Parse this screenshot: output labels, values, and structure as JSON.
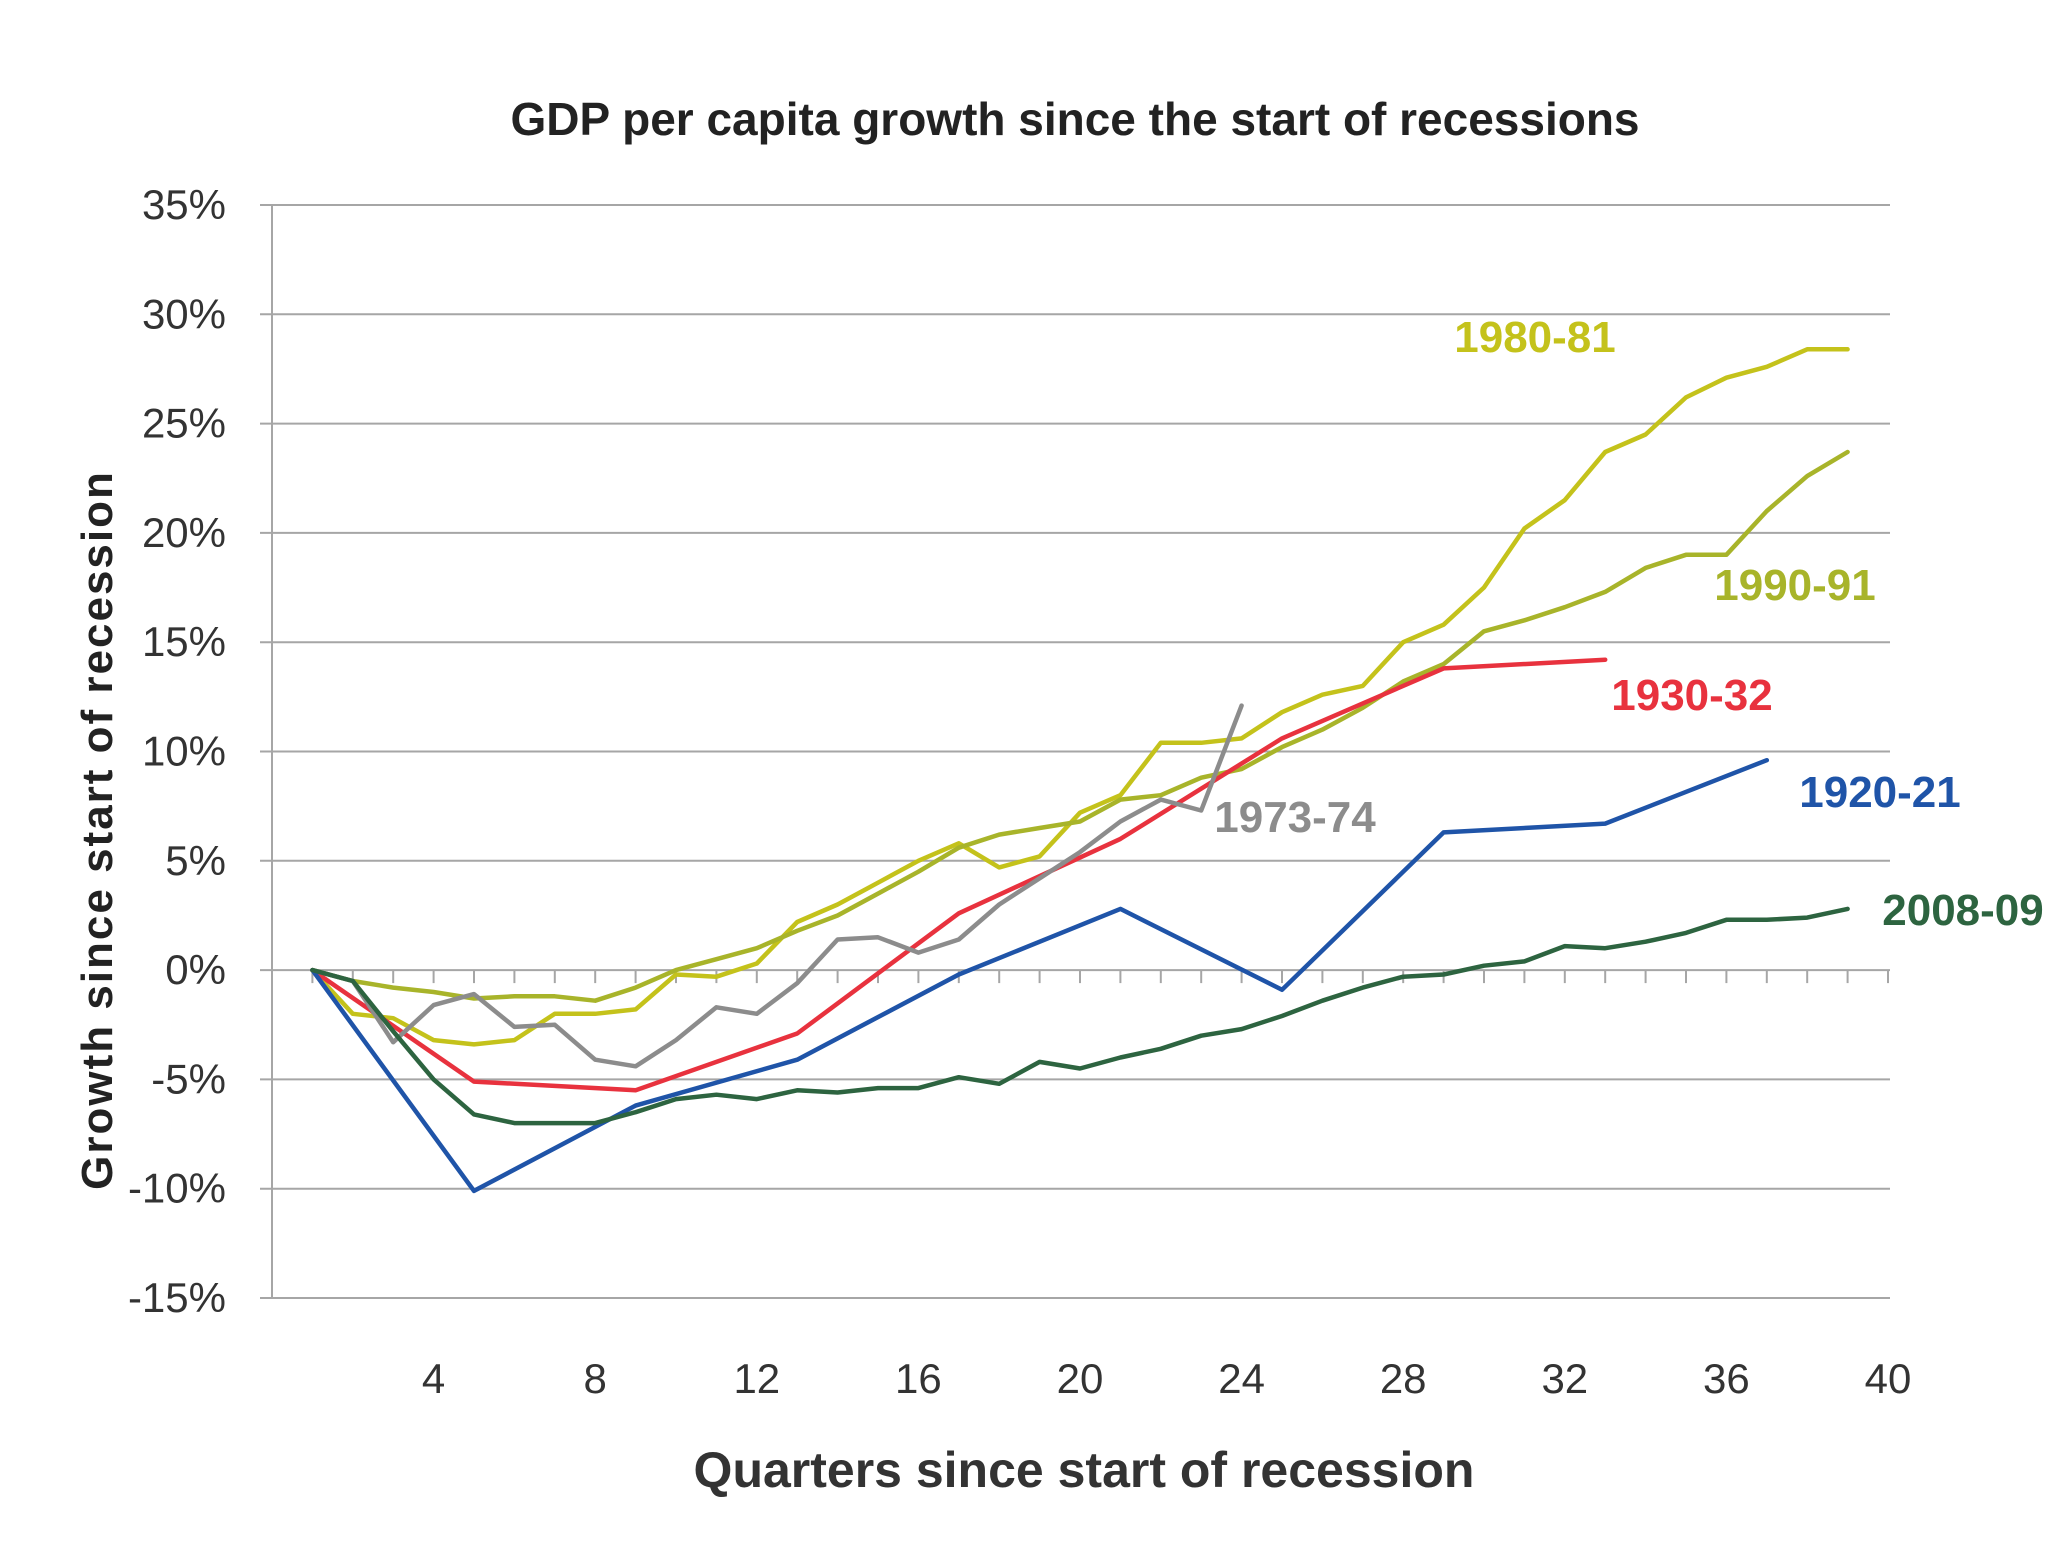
{
  "chart_data": {
    "type": "line",
    "title": "GDP per capita growth since the start of recessions",
    "xlabel": "Quarters since start of recession",
    "ylabel": "Growth since start of recession",
    "xlim": [
      0,
      40
    ],
    "ylim": [
      -15,
      35
    ],
    "x_ticks": [
      4,
      8,
      12,
      16,
      20,
      24,
      28,
      32,
      36,
      40
    ],
    "y_ticks": [
      -15,
      -10,
      -5,
      0,
      5,
      10,
      15,
      20,
      25,
      30,
      35
    ],
    "y_tick_labels": [
      "-15%",
      "-10%",
      "-5%",
      "0%",
      "5%",
      "10%",
      "15%",
      "20%",
      "25%",
      "30%",
      "35%"
    ],
    "grid": "horizontal",
    "legend": "inline labels at line ends",
    "series": [
      {
        "name": "1980-81",
        "color": "#c4c21b",
        "x": [
          1,
          2,
          3,
          4,
          5,
          6,
          7,
          8,
          9,
          10,
          11,
          12,
          13,
          14,
          15,
          16,
          17,
          18,
          19,
          20,
          21,
          22,
          23,
          24,
          25,
          26,
          27,
          28,
          29,
          30,
          31,
          32,
          33,
          34,
          35,
          36,
          37,
          38,
          39
        ],
        "values": [
          0,
          -2.0,
          -2.2,
          -3.2,
          -3.4,
          -3.2,
          -2.0,
          -2.0,
          -1.8,
          -0.2,
          -0.3,
          0.3,
          2.2,
          3.0,
          4.0,
          5.0,
          5.8,
          4.7,
          5.2,
          7.2,
          8.0,
          10.4,
          10.4,
          10.6,
          11.8,
          12.6,
          13.0,
          15.0,
          15.8,
          17.5,
          20.2,
          21.5,
          23.7,
          24.5,
          26.2,
          27.1,
          27.6,
          28.4,
          28.4
        ]
      },
      {
        "name": "1990-91",
        "color": "#a8b42a",
        "x": [
          1,
          2,
          3,
          4,
          5,
          6,
          7,
          8,
          9,
          10,
          11,
          12,
          13,
          14,
          15,
          16,
          17,
          18,
          19,
          20,
          21,
          22,
          23,
          24,
          25,
          26,
          27,
          28,
          29,
          30,
          31,
          32,
          33,
          34,
          35,
          36,
          37,
          38,
          39
        ],
        "values": [
          0,
          -0.5,
          -0.8,
          -1.0,
          -1.3,
          -1.2,
          -1.2,
          -1.4,
          -0.8,
          0.0,
          0.5,
          1.0,
          1.8,
          2.5,
          3.5,
          4.5,
          5.6,
          6.2,
          6.5,
          6.8,
          7.8,
          8.0,
          8.8,
          9.2,
          10.2,
          11.0,
          12.0,
          13.2,
          14.0,
          15.5,
          16.0,
          16.6,
          17.3,
          18.4,
          19.0,
          19.0,
          21.0,
          22.6,
          23.7
        ]
      },
      {
        "name": "1930-32",
        "color": "#e8323e",
        "x": [
          1,
          5,
          9,
          13,
          17,
          21,
          25,
          29,
          33
        ],
        "values": [
          0,
          -5.1,
          -5.5,
          -2.9,
          2.6,
          6.0,
          10.6,
          13.8,
          14.2
        ]
      },
      {
        "name": "1973-74",
        "color": "#8c8c8c",
        "x": [
          1,
          2,
          3,
          4,
          5,
          6,
          7,
          8,
          9,
          10,
          11,
          12,
          13,
          14,
          15,
          16,
          17,
          18,
          19,
          20,
          21,
          22,
          23,
          24
        ],
        "values": [
          0,
          -0.5,
          -3.3,
          -1.6,
          -1.1,
          -2.6,
          -2.5,
          -4.1,
          -4.4,
          -3.2,
          -1.7,
          -2.0,
          -0.6,
          1.4,
          1.5,
          0.8,
          1.4,
          3.0,
          4.2,
          5.4,
          6.8,
          7.8,
          7.3,
          12.1
        ]
      },
      {
        "name": "1920-21",
        "color": "#1f54a8",
        "x": [
          1,
          5,
          9,
          13,
          17,
          21,
          25,
          29,
          33,
          37
        ],
        "values": [
          0,
          -10.1,
          -6.2,
          -4.1,
          -0.2,
          2.8,
          -0.9,
          6.3,
          6.7,
          9.6
        ]
      },
      {
        "name": "2008-09",
        "color": "#2d6440",
        "x": [
          1,
          2,
          3,
          4,
          5,
          6,
          7,
          8,
          9,
          10,
          11,
          12,
          13,
          14,
          15,
          16,
          17,
          18,
          19,
          20,
          21,
          22,
          23,
          24,
          25,
          26,
          27,
          28,
          29,
          30,
          31,
          32,
          33,
          34,
          35,
          36,
          37,
          38,
          39
        ],
        "values": [
          0,
          -0.5,
          -2.8,
          -5.0,
          -6.6,
          -7.0,
          -7.0,
          -7.0,
          -6.5,
          -5.9,
          -5.7,
          -5.9,
          -5.5,
          -5.6,
          -5.4,
          -5.4,
          -4.9,
          -5.2,
          -4.2,
          -4.5,
          -4.0,
          -3.6,
          -3.0,
          -2.7,
          -2.1,
          -1.4,
          -0.8,
          -0.3,
          -0.2,
          0.2,
          0.4,
          1.1,
          1.0,
          1.3,
          1.7,
          2.3,
          2.3,
          2.4,
          2.8
        ]
      }
    ]
  }
}
